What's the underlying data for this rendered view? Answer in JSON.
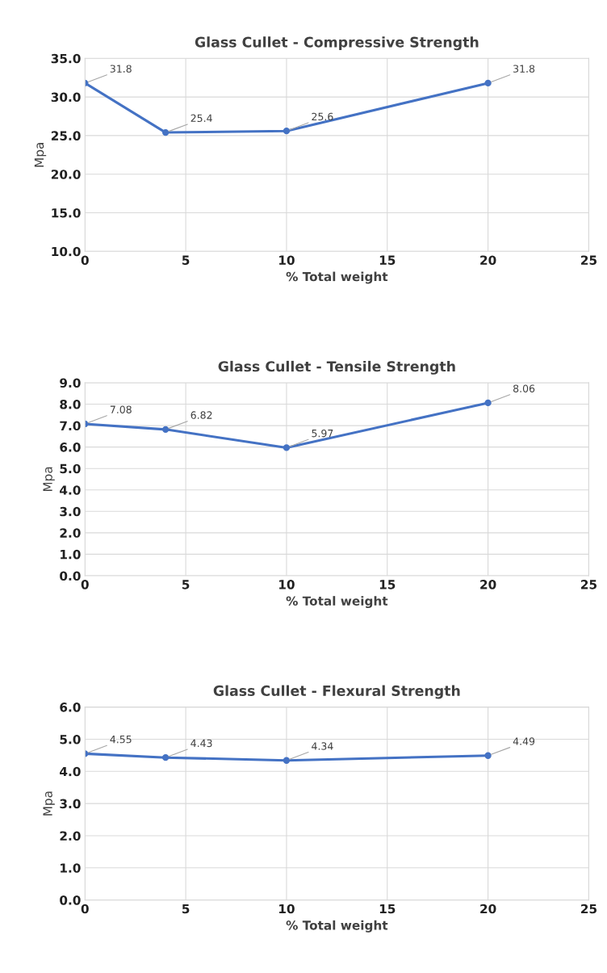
{
  "chart_data": [
    {
      "type": "line",
      "title": "Glass Cullet - Compressive Strength",
      "xlabel": "% Total weight",
      "ylabel": "Mpa",
      "x": [
        0,
        4,
        10,
        20
      ],
      "series": [
        {
          "color": "#4472c4",
          "values": [
            31.8,
            25.4,
            25.6,
            31.8
          ]
        }
      ],
      "xlim": [
        0,
        25
      ],
      "xticks": [
        0,
        5,
        10,
        15,
        20,
        25
      ],
      "ylim": [
        10,
        35
      ],
      "yticks": [
        {
          "value": 10,
          "label": "10.0"
        },
        {
          "value": 15,
          "label": "15.0"
        },
        {
          "value": 20,
          "label": "20.0"
        },
        {
          "value": 25,
          "label": "25.0"
        },
        {
          "value": 30,
          "label": "30.0"
        },
        {
          "value": 35,
          "label": "35.0"
        }
      ],
      "grid": true,
      "marker": "circle",
      "line_style": "solid",
      "data_labels": true
    },
    {
      "type": "line",
      "title": "Glass Cullet - Tensile Strength",
      "xlabel": "% Total weight",
      "ylabel": "Mpa",
      "x": [
        0,
        4,
        10,
        20
      ],
      "series": [
        {
          "color": "#4472c4",
          "values": [
            7.08,
            6.82,
            5.97,
            8.06
          ]
        }
      ],
      "xlim": [
        0,
        25
      ],
      "xticks": [
        0,
        5,
        10,
        15,
        20,
        25
      ],
      "ylim": [
        0,
        9
      ],
      "yticks": [
        {
          "value": 0,
          "label": "0.0"
        },
        {
          "value": 1,
          "label": "1.0"
        },
        {
          "value": 2,
          "label": "2.0"
        },
        {
          "value": 3,
          "label": "3.0"
        },
        {
          "value": 4,
          "label": "4.0"
        },
        {
          "value": 5,
          "label": "5.0"
        },
        {
          "value": 6,
          "label": "6.0"
        },
        {
          "value": 7,
          "label": "7.0"
        },
        {
          "value": 8,
          "label": "8.0"
        },
        {
          "value": 9,
          "label": "9.0"
        }
      ],
      "grid": true,
      "marker": "circle",
      "line_style": "solid",
      "data_labels": true
    },
    {
      "type": "line",
      "title": "Glass Cullet - Flexural Strength",
      "xlabel": "% Total weight",
      "ylabel": "Mpa",
      "x": [
        0,
        4,
        10,
        20
      ],
      "series": [
        {
          "color": "#4472c4",
          "values": [
            4.55,
            4.43,
            4.34,
            4.49
          ]
        }
      ],
      "xlim": [
        0,
        25
      ],
      "xticks": [
        0,
        5,
        10,
        15,
        20,
        25
      ],
      "ylim": [
        0,
        6
      ],
      "yticks": [
        {
          "value": 0,
          "label": "0.0"
        },
        {
          "value": 1,
          "label": "1.0"
        },
        {
          "value": 2,
          "label": "2.0"
        },
        {
          "value": 3,
          "label": "3.0"
        },
        {
          "value": 4,
          "label": "4.0"
        },
        {
          "value": 5,
          "label": "5.0"
        },
        {
          "value": 6,
          "label": "6.0"
        }
      ],
      "grid": true,
      "marker": "circle",
      "line_style": "solid",
      "data_labels": true
    }
  ]
}
